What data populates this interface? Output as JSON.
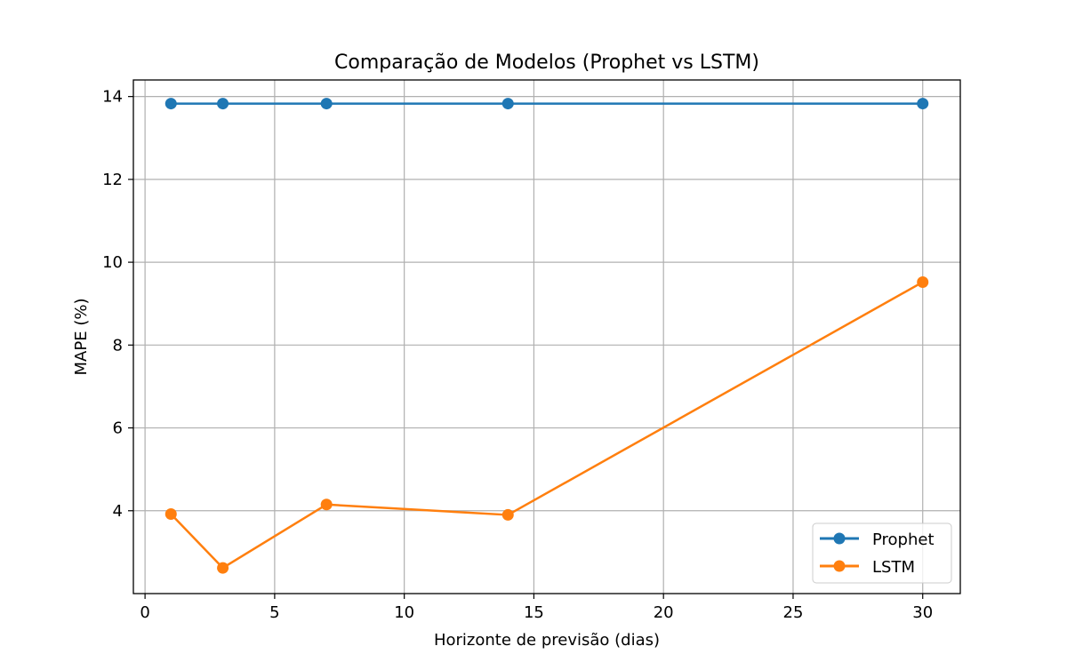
{
  "chart_data": {
    "type": "line",
    "title": "Comparação de Modelos (Prophet vs LSTM)",
    "xlabel": "Horizonte de previsão (dias)",
    "ylabel": "MAPE (%)",
    "x": [
      1,
      3,
      7,
      14,
      30
    ],
    "series": [
      {
        "name": "Prophet",
        "color": "#1f77b4",
        "marker": "circle",
        "values": [
          13.83,
          13.83,
          13.83,
          13.83,
          13.83
        ]
      },
      {
        "name": "LSTM",
        "color": "#ff7f0e",
        "marker": "circle",
        "values": [
          3.92,
          2.62,
          4.15,
          3.9,
          9.52
        ]
      }
    ],
    "xlim": [
      -0.45,
      31.45
    ],
    "ylim": [
      2.0,
      14.4
    ],
    "xticks": [
      0,
      5,
      10,
      15,
      20,
      25,
      30
    ],
    "yticks": [
      4,
      6,
      8,
      10,
      12,
      14
    ],
    "grid": true,
    "legend_position": "bottom-right"
  }
}
